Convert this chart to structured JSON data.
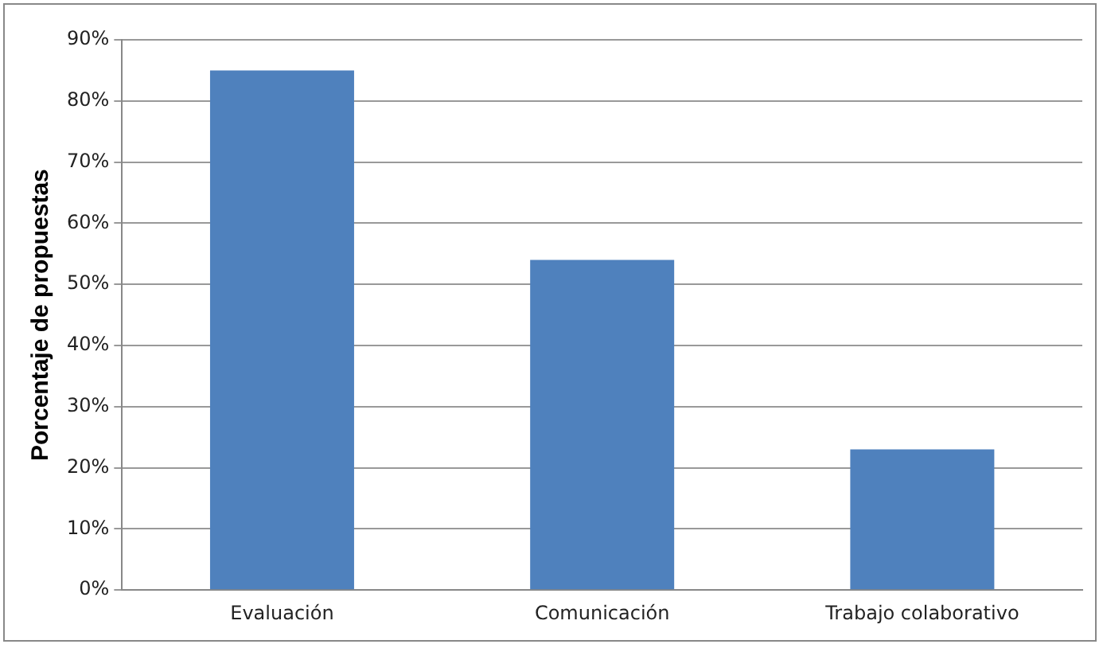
{
  "chart_data": {
    "type": "bar",
    "ylabel": "Porcentaje de propuestas",
    "categories": [
      "Evaluación",
      "Comunicación",
      "Trabajo colaborativo"
    ],
    "values": [
      85,
      54,
      23
    ],
    "color": "#4f81bd",
    "ylim": [
      0,
      90
    ],
    "yticks": [
      {
        "value": 0,
        "label": "0%"
      },
      {
        "value": 10,
        "label": "10%"
      },
      {
        "value": 20,
        "label": "20%"
      },
      {
        "value": 30,
        "label": "30%"
      },
      {
        "value": 40,
        "label": "40%"
      },
      {
        "value": 50,
        "label": "50%"
      },
      {
        "value": 60,
        "label": "60%"
      },
      {
        "value": 70,
        "label": "70%"
      },
      {
        "value": 80,
        "label": "80%"
      },
      {
        "value": 90,
        "label": "90%"
      }
    ],
    "grid": "y",
    "legend": false
  }
}
